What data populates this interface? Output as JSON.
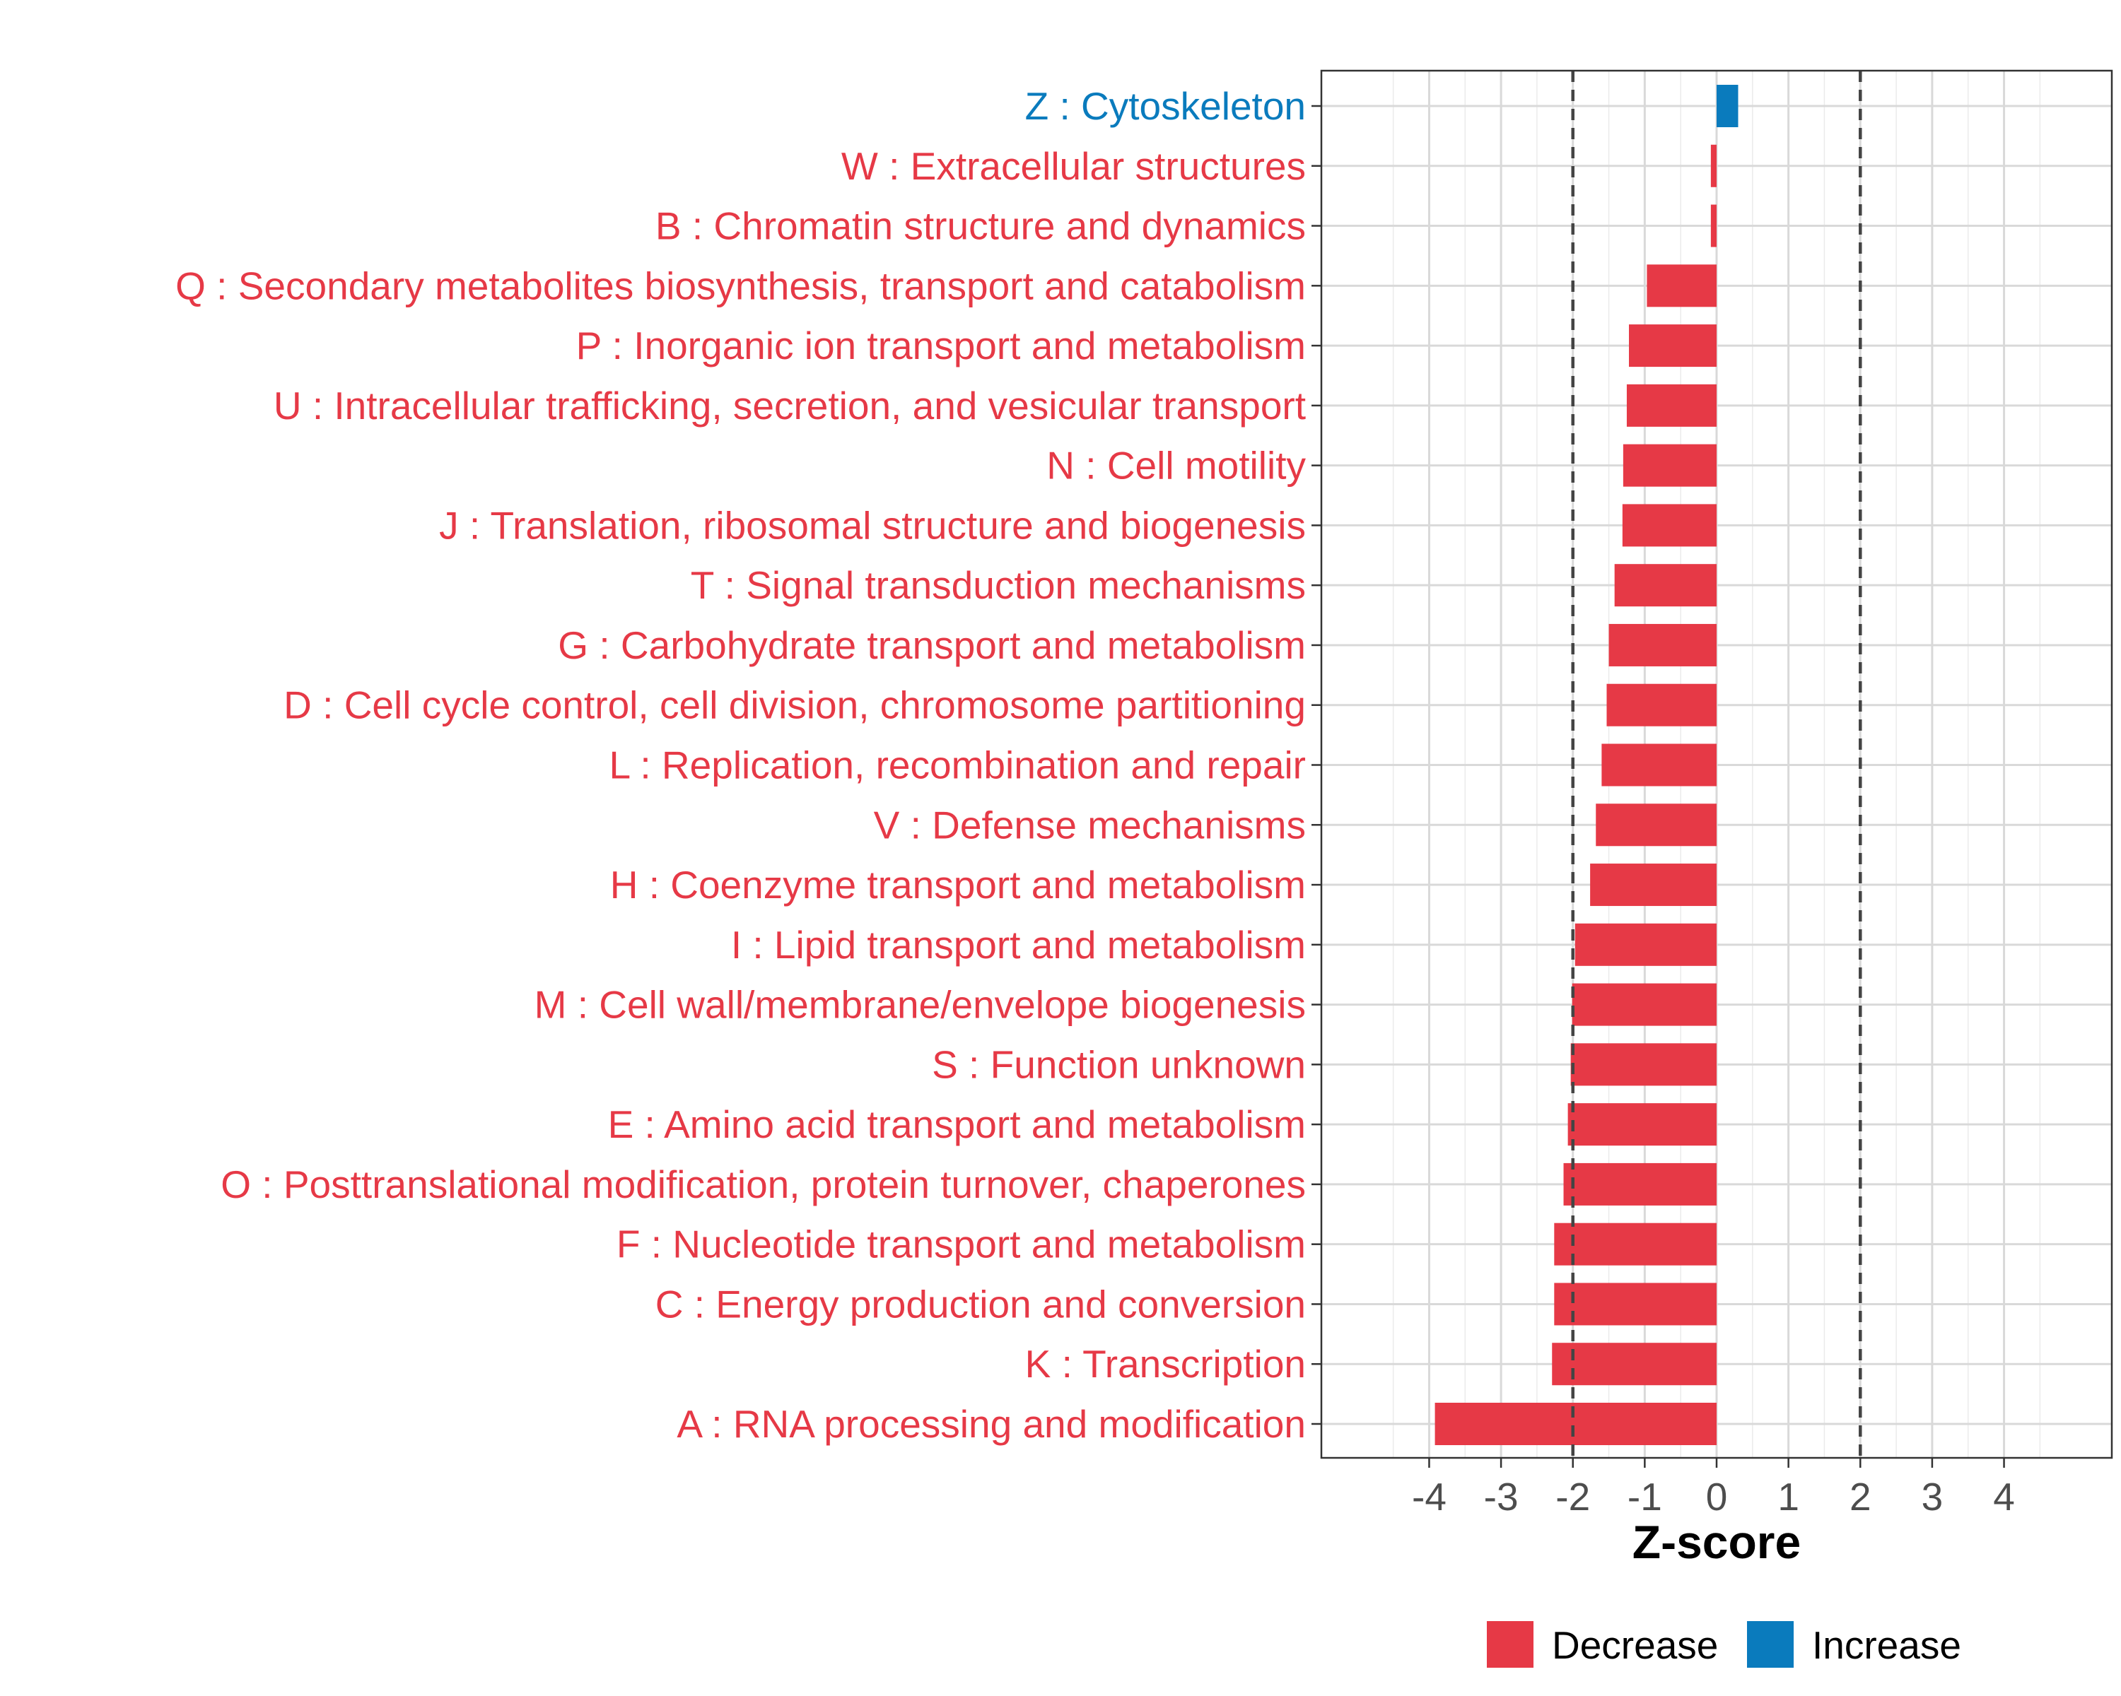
{
  "chart_data": {
    "type": "bar",
    "orientation": "horizontal",
    "xlabel": "Z-score",
    "xlim": [
      -5.5,
      5.5
    ],
    "xticks": [
      -4,
      -3,
      -2,
      -1,
      0,
      1,
      2,
      3,
      4
    ],
    "reference_lines": [
      -2,
      2
    ],
    "colors": {
      "Decrease": "#e63946",
      "Increase": "#0a7bbd"
    },
    "legend": {
      "position": "bottom",
      "entries": [
        "Decrease",
        "Increase"
      ]
    },
    "categories": [
      {
        "label": "Z : Cytoskeleton",
        "value": 0.3,
        "direction": "Increase"
      },
      {
        "label": "W : Extracellular structures",
        "value": -0.08,
        "direction": "Decrease"
      },
      {
        "label": "B : Chromatin structure and dynamics",
        "value": -0.08,
        "direction": "Decrease"
      },
      {
        "label": "Q : Secondary metabolites biosynthesis, transport and catabolism",
        "value": -0.97,
        "direction": "Decrease"
      },
      {
        "label": "P : Inorganic ion transport and metabolism",
        "value": -1.22,
        "direction": "Decrease"
      },
      {
        "label": "U : Intracellular trafficking, secretion, and vesicular transport",
        "value": -1.25,
        "direction": "Decrease"
      },
      {
        "label": "N : Cell motility",
        "value": -1.3,
        "direction": "Decrease"
      },
      {
        "label": "J : Translation, ribosomal structure and biogenesis",
        "value": -1.31,
        "direction": "Decrease"
      },
      {
        "label": "T : Signal transduction mechanisms",
        "value": -1.42,
        "direction": "Decrease"
      },
      {
        "label": "G : Carbohydrate transport and metabolism",
        "value": -1.5,
        "direction": "Decrease"
      },
      {
        "label": "D : Cell cycle control, cell division, chromosome partitioning",
        "value": -1.53,
        "direction": "Decrease"
      },
      {
        "label": "L : Replication, recombination and repair",
        "value": -1.6,
        "direction": "Decrease"
      },
      {
        "label": "V : Defense mechanisms",
        "value": -1.68,
        "direction": "Decrease"
      },
      {
        "label": "H : Coenzyme transport and metabolism",
        "value": -1.76,
        "direction": "Decrease"
      },
      {
        "label": "I : Lipid transport and metabolism",
        "value": -1.97,
        "direction": "Decrease"
      },
      {
        "label": "M : Cell wall/membrane/envelope biogenesis",
        "value": -2.01,
        "direction": "Decrease"
      },
      {
        "label": "S : Function unknown",
        "value": -2.03,
        "direction": "Decrease"
      },
      {
        "label": "E : Amino acid transport and metabolism",
        "value": -2.07,
        "direction": "Decrease"
      },
      {
        "label": "O : Posttranslational modification, protein turnover, chaperones",
        "value": -2.13,
        "direction": "Decrease"
      },
      {
        "label": "F : Nucleotide transport and metabolism",
        "value": -2.26,
        "direction": "Decrease"
      },
      {
        "label": "C : Energy production and conversion",
        "value": -2.26,
        "direction": "Decrease"
      },
      {
        "label": "K : Transcription",
        "value": -2.29,
        "direction": "Decrease"
      },
      {
        "label": "A : RNA processing and modification",
        "value": -3.92,
        "direction": "Decrease"
      }
    ]
  }
}
